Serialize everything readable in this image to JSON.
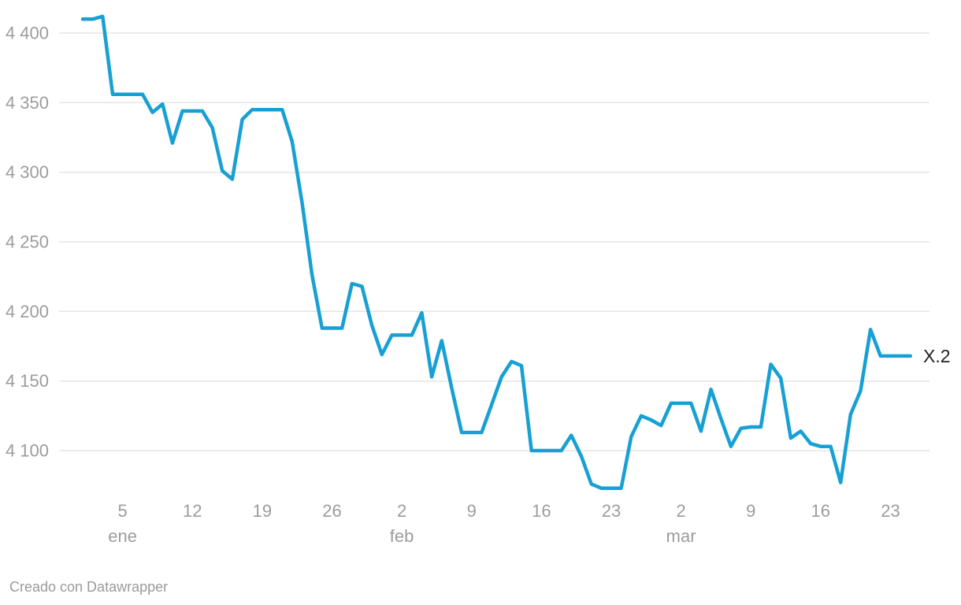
{
  "chart": {
    "style": {
      "line_color": "#17a0d4",
      "grid_color": "#e5e5e5",
      "axis_text_color": "#9c9c9c",
      "series_label_color": "#222222",
      "footer_text_color": "#9a9a9a",
      "background_color": "#ffffff"
    },
    "series_label": "X.2",
    "y_axis": {
      "ticks": [
        {
          "label": "4 400",
          "value": 4400
        },
        {
          "label": "4 350",
          "value": 4350
        },
        {
          "label": "4 300",
          "value": 4300
        },
        {
          "label": "4 250",
          "value": 4250
        },
        {
          "label": "4 200",
          "value": 4200
        },
        {
          "label": "4 150",
          "value": 4150
        },
        {
          "label": "4 100",
          "value": 4100
        }
      ]
    },
    "x_axis": {
      "ticks": [
        {
          "day": "5",
          "month": "ene",
          "index": 4
        },
        {
          "day": "12",
          "index": 11
        },
        {
          "day": "19",
          "index": 18
        },
        {
          "day": "26",
          "index": 25
        },
        {
          "day": "2",
          "month": "feb",
          "index": 32
        },
        {
          "day": "9",
          "index": 39
        },
        {
          "day": "16",
          "index": 46
        },
        {
          "day": "23",
          "index": 53
        },
        {
          "day": "2",
          "month": "mar",
          "index": 60
        },
        {
          "day": "9",
          "index": 67
        },
        {
          "day": "16",
          "index": 74
        },
        {
          "day": "23",
          "index": 81
        }
      ]
    }
  },
  "footer": {
    "credit": "Creado con Datawrapper"
  },
  "chart_data": {
    "type": "line",
    "legend": "inline-end-label",
    "grid": "horizontal-only",
    "ylim": [
      4050,
      4420
    ],
    "y_tick_values": [
      4400,
      4350,
      4300,
      4250,
      4200,
      4150,
      4100
    ],
    "series": [
      {
        "name": "X.2",
        "x": [
          "1 ene",
          "2 ene",
          "3 ene",
          "4 ene",
          "5 ene",
          "6 ene",
          "7 ene",
          "8 ene",
          "9 ene",
          "10 ene",
          "11 ene",
          "12 ene",
          "13 ene",
          "14 ene",
          "15 ene",
          "16 ene",
          "17 ene",
          "18 ene",
          "19 ene",
          "20 ene",
          "21 ene",
          "22 ene",
          "23 ene",
          "24 ene",
          "25 ene",
          "26 ene",
          "27 ene",
          "28 ene",
          "29 ene",
          "30 ene",
          "31 ene",
          "1 feb",
          "2 feb",
          "3 feb",
          "4 feb",
          "5 feb",
          "6 feb",
          "7 feb",
          "8 feb",
          "9 feb",
          "10 feb",
          "11 feb",
          "12 feb",
          "13 feb",
          "14 feb",
          "15 feb",
          "16 feb",
          "17 feb",
          "18 feb",
          "19 feb",
          "20 feb",
          "21 feb",
          "22 feb",
          "23 feb",
          "24 feb",
          "25 feb",
          "26 feb",
          "27 feb",
          "28 feb",
          "1 mar",
          "2 mar",
          "3 mar",
          "4 mar",
          "5 mar",
          "6 mar",
          "7 mar",
          "8 mar",
          "9 mar",
          "10 mar",
          "11 mar",
          "12 mar",
          "13 mar",
          "14 mar",
          "15 mar",
          "16 mar",
          "17 mar",
          "18 mar",
          "19 mar",
          "20 mar",
          "21 mar",
          "22 mar",
          "23 mar",
          "24 mar",
          "25 mar"
        ],
        "values": [
          4410,
          4410,
          4412,
          4356,
          4356,
          4356,
          4356,
          4343,
          4349,
          4321,
          4344,
          4344,
          4344,
          4332,
          4301,
          4295,
          4338,
          4345,
          4345,
          4345,
          4345,
          4322,
          4278,
          4226,
          4188,
          4188,
          4188,
          4220,
          4218,
          4190,
          4169,
          4183,
          4183,
          4183,
          4199,
          4153,
          4179,
          4145,
          4113,
          4113,
          4113,
          4133,
          4153,
          4164,
          4161,
          4100,
          4100,
          4100,
          4100,
          4111,
          4096,
          4076,
          4073,
          4073,
          4073,
          4110,
          4125,
          4122,
          4118,
          4134,
          4134,
          4134,
          4114,
          4144,
          4123,
          4103,
          4116,
          4117,
          4117,
          4162,
          4152,
          4109,
          4114,
          4105,
          4103,
          4103,
          4077,
          4126,
          4143,
          4187,
          4168,
          4168,
          4168,
          4168
        ]
      }
    ]
  }
}
